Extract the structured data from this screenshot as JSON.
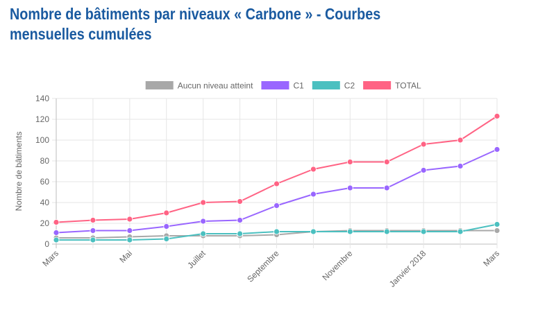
{
  "chart_data": {
    "type": "line",
    "title": "Nombre de bâtiments par niveaux « Carbone » - Courbes mensuelles cumulées",
    "xlabel": "",
    "ylabel": "Nombre de bâtiments",
    "ylim": [
      0,
      140
    ],
    "yticks": [
      0,
      20,
      40,
      60,
      80,
      100,
      120,
      140
    ],
    "grid": true,
    "legend_position": "top-center",
    "categories": [
      "Mars",
      "",
      "Mai",
      "",
      "Juillet",
      "",
      "Septembre",
      "",
      "Novembre",
      "",
      "Janvier 2018",
      "",
      "Mars"
    ],
    "series": [
      {
        "name": "Aucun niveau atteint",
        "color": "#a8a8a8",
        "values": [
          6,
          6,
          7,
          8,
          8,
          8,
          9,
          12,
          13,
          13,
          13,
          13,
          13
        ]
      },
      {
        "name": "C1",
        "color": "#9966ff",
        "values": [
          11,
          13,
          13,
          17,
          22,
          23,
          37,
          48,
          54,
          54,
          71,
          75,
          91
        ]
      },
      {
        "name": "C2",
        "color": "#4bc0c0",
        "values": [
          4,
          4,
          4,
          5,
          10,
          10,
          12,
          12,
          12,
          12,
          12,
          12,
          19
        ]
      },
      {
        "name": "TOTAL",
        "color": "#ff6384",
        "values": [
          21,
          23,
          24,
          30,
          40,
          41,
          58,
          72,
          79,
          79,
          96,
          100,
          123
        ]
      }
    ]
  }
}
